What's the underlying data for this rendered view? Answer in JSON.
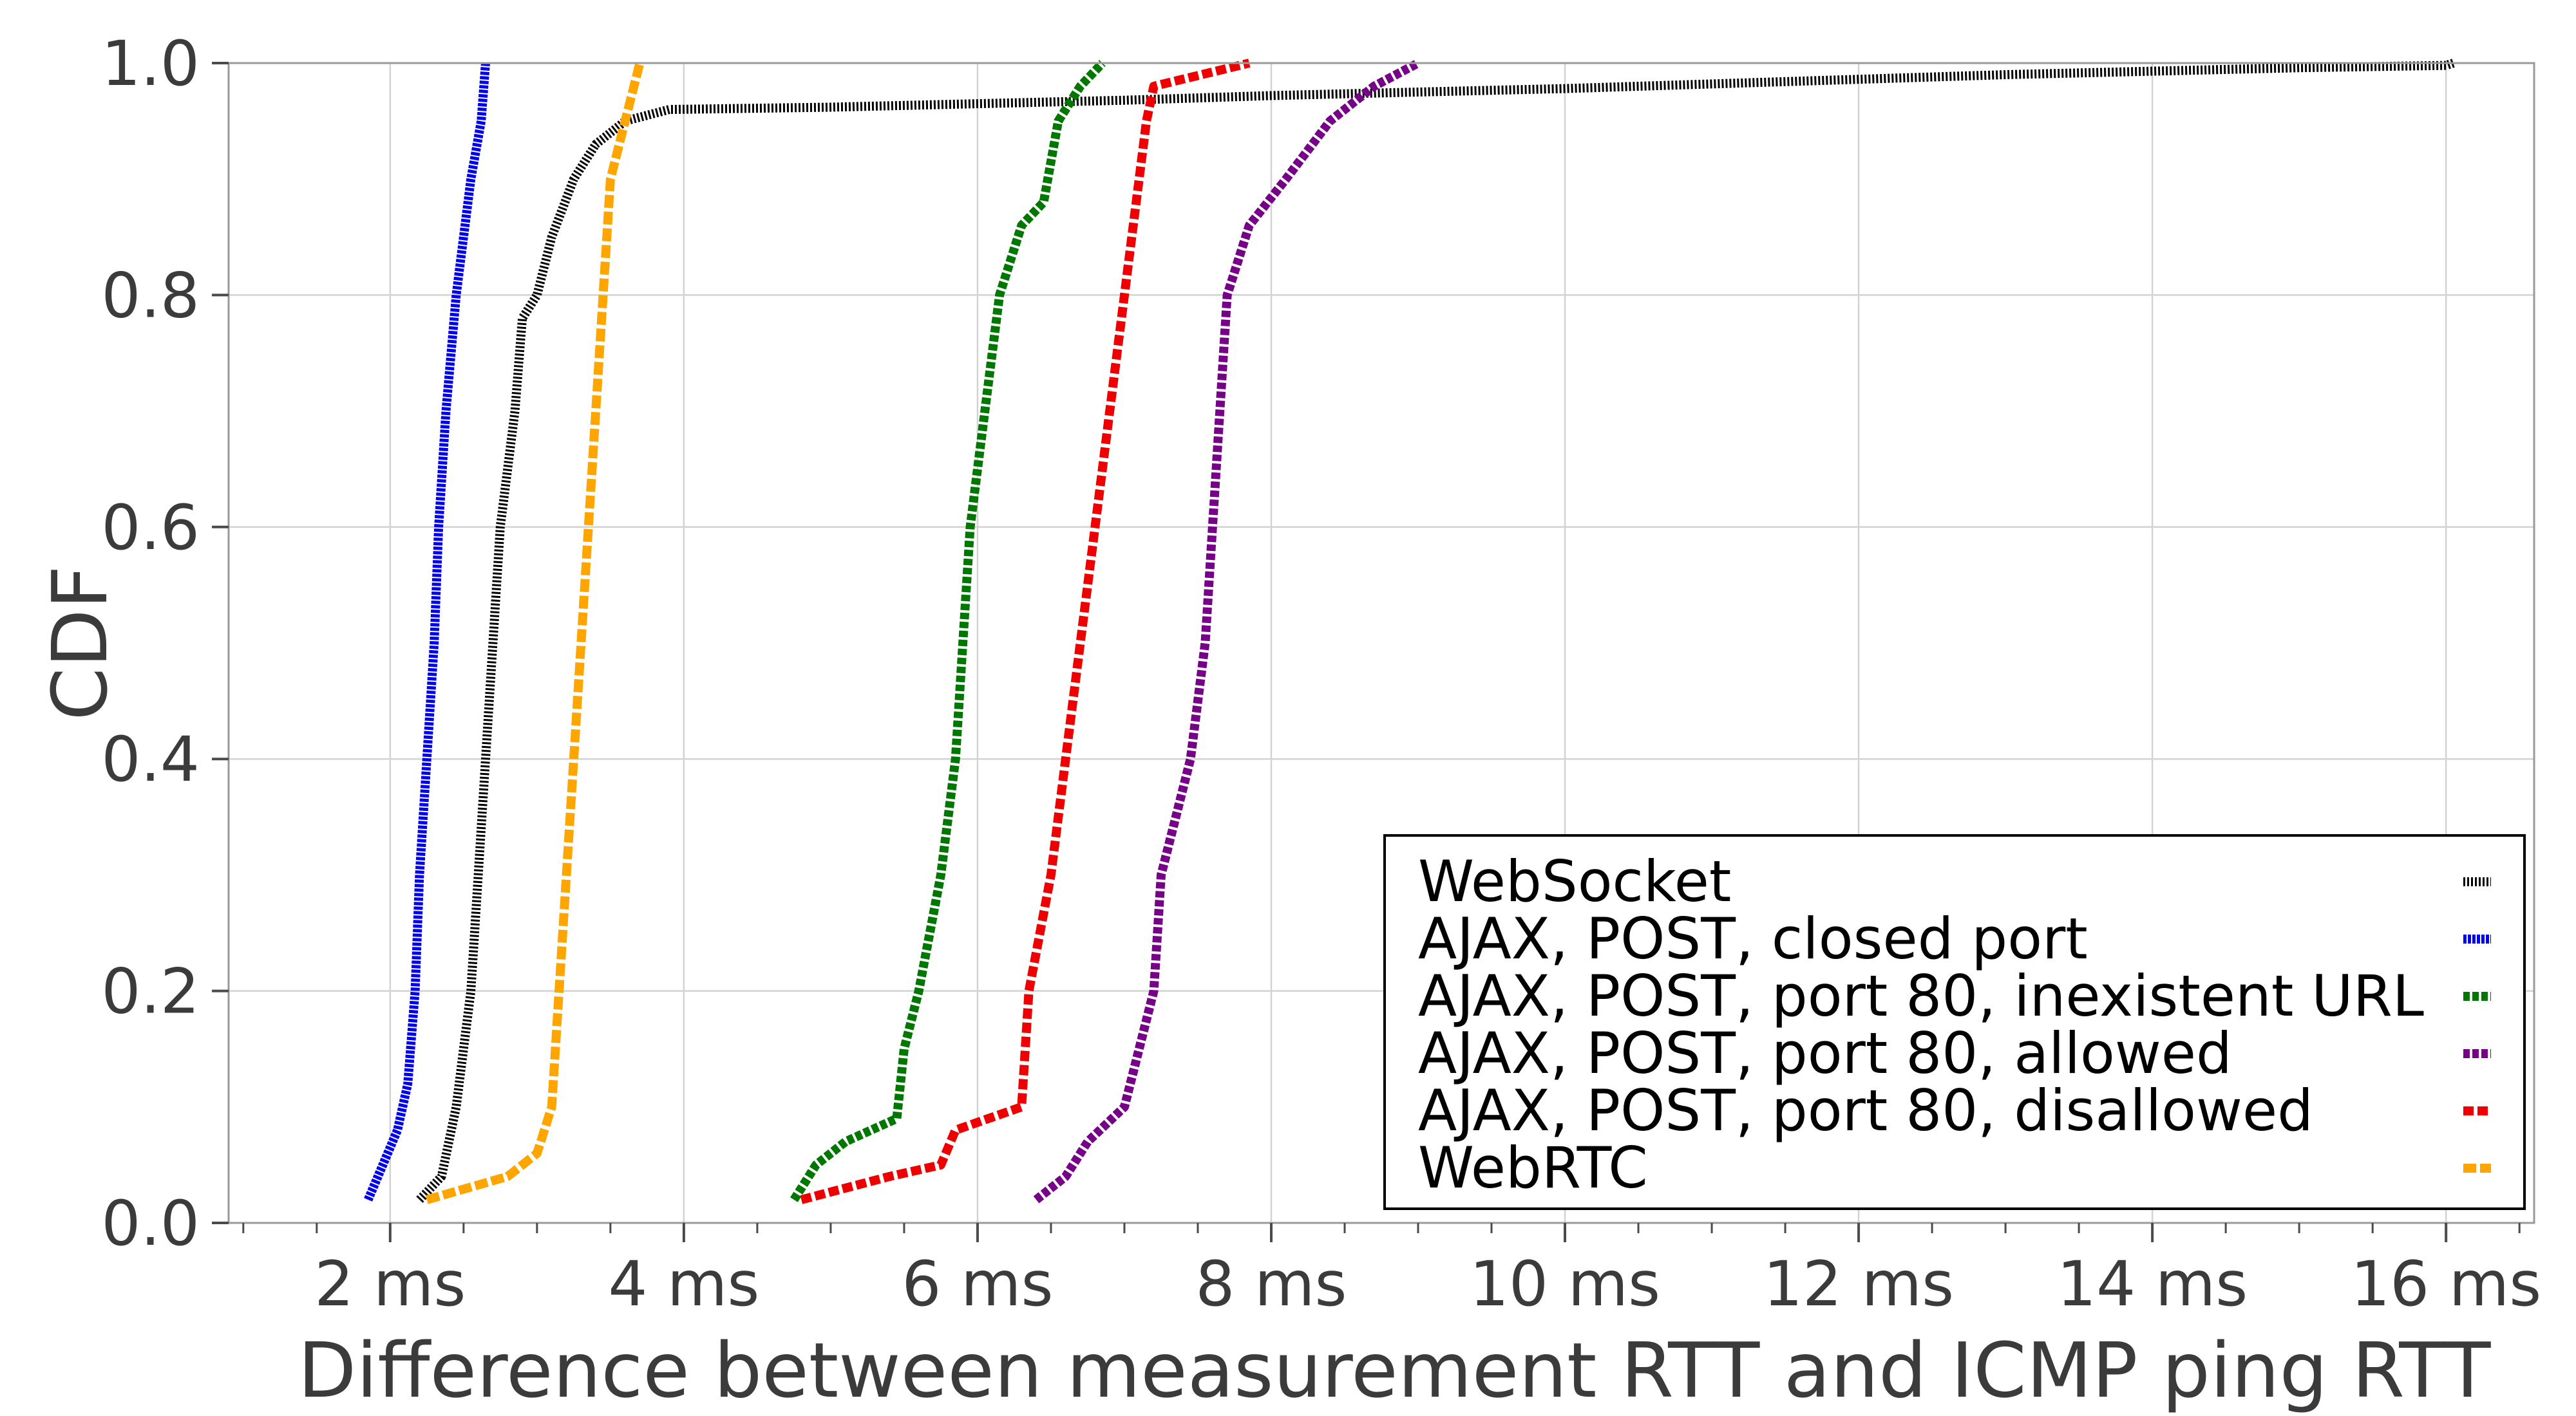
{
  "chart_data": {
    "type": "line",
    "title": "",
    "xlabel": "Difference between measurement RTT and ICMP ping RTT",
    "ylabel": "CDF",
    "xlim": [
      0.9,
      16.6
    ],
    "ylim": [
      0.0,
      1.0
    ],
    "x_ticks": [
      {
        "value": 2,
        "label": "2 ms"
      },
      {
        "value": 4,
        "label": "4 ms"
      },
      {
        "value": 6,
        "label": "6 ms"
      },
      {
        "value": 8,
        "label": "8 ms"
      },
      {
        "value": 10,
        "label": "10 ms"
      },
      {
        "value": 12,
        "label": "12 ms"
      },
      {
        "value": 14,
        "label": "14 ms"
      },
      {
        "value": 16,
        "label": "16 ms"
      }
    ],
    "y_ticks": [
      {
        "value": 0.0,
        "label": "0.0"
      },
      {
        "value": 0.2,
        "label": "0.2"
      },
      {
        "value": 0.4,
        "label": "0.4"
      },
      {
        "value": 0.6,
        "label": "0.6"
      },
      {
        "value": 0.8,
        "label": "0.8"
      },
      {
        "value": 1.0,
        "label": "1.0"
      }
    ],
    "grid": true,
    "legend_position": "bottom-right",
    "series": [
      {
        "name": "WebSocket",
        "color": "#000000",
        "dash": "3 3",
        "points": [
          [
            2.2,
            0.02
          ],
          [
            2.35,
            0.04
          ],
          [
            2.45,
            0.1
          ],
          [
            2.55,
            0.2
          ],
          [
            2.6,
            0.3
          ],
          [
            2.65,
            0.4
          ],
          [
            2.7,
            0.5
          ],
          [
            2.75,
            0.6
          ],
          [
            2.8,
            0.65
          ],
          [
            2.85,
            0.7
          ],
          [
            2.9,
            0.78
          ],
          [
            3.0,
            0.8
          ],
          [
            3.1,
            0.85
          ],
          [
            3.25,
            0.9
          ],
          [
            3.4,
            0.93
          ],
          [
            3.6,
            0.95
          ],
          [
            3.9,
            0.96
          ],
          [
            5.0,
            0.962
          ],
          [
            6.0,
            0.965
          ],
          [
            7.0,
            0.968
          ],
          [
            8.0,
            0.972
          ],
          [
            9.0,
            0.975
          ],
          [
            10.0,
            0.978
          ],
          [
            11.0,
            0.982
          ],
          [
            12.0,
            0.986
          ],
          [
            13.0,
            0.99
          ],
          [
            14.0,
            0.993
          ],
          [
            15.0,
            0.996
          ],
          [
            16.0,
            0.998
          ],
          [
            16.05,
            1.0
          ]
        ]
      },
      {
        "name": "AJAX, POST, closed port",
        "color": "#0000ee",
        "dash": "5 2",
        "points": [
          [
            1.85,
            0.02
          ],
          [
            1.95,
            0.05
          ],
          [
            2.05,
            0.08
          ],
          [
            2.12,
            0.12
          ],
          [
            2.17,
            0.2
          ],
          [
            2.2,
            0.3
          ],
          [
            2.25,
            0.4
          ],
          [
            2.3,
            0.5
          ],
          [
            2.33,
            0.6
          ],
          [
            2.38,
            0.7
          ],
          [
            2.45,
            0.8
          ],
          [
            2.55,
            0.9
          ],
          [
            2.62,
            0.95
          ],
          [
            2.65,
            1.0
          ]
        ]
      },
      {
        "name": "AJAX, POST, port 80, inexistent URL",
        "color": "#007700",
        "dash": "10 4",
        "points": [
          [
            4.75,
            0.02
          ],
          [
            4.9,
            0.05
          ],
          [
            5.1,
            0.07
          ],
          [
            5.45,
            0.09
          ],
          [
            5.5,
            0.15
          ],
          [
            5.6,
            0.2
          ],
          [
            5.75,
            0.3
          ],
          [
            5.85,
            0.4
          ],
          [
            5.9,
            0.5
          ],
          [
            5.95,
            0.6
          ],
          [
            6.05,
            0.7
          ],
          [
            6.15,
            0.8
          ],
          [
            6.3,
            0.86
          ],
          [
            6.45,
            0.88
          ],
          [
            6.55,
            0.95
          ],
          [
            6.7,
            0.98
          ],
          [
            6.85,
            1.0
          ]
        ]
      },
      {
        "name": "AJAX, POST, port 80, allowed",
        "color": "#770088",
        "dash": "10 4",
        "points": [
          [
            6.4,
            0.02
          ],
          [
            6.6,
            0.04
          ],
          [
            6.75,
            0.07
          ],
          [
            7.0,
            0.1
          ],
          [
            7.1,
            0.15
          ],
          [
            7.2,
            0.2
          ],
          [
            7.25,
            0.3
          ],
          [
            7.35,
            0.35
          ],
          [
            7.45,
            0.4
          ],
          [
            7.55,
            0.5
          ],
          [
            7.6,
            0.6
          ],
          [
            7.65,
            0.7
          ],
          [
            7.7,
            0.8
          ],
          [
            7.85,
            0.86
          ],
          [
            8.1,
            0.9
          ],
          [
            8.4,
            0.95
          ],
          [
            8.7,
            0.98
          ],
          [
            9.0,
            1.0
          ]
        ]
      },
      {
        "name": "AJAX, POST, port 80, disallowed",
        "color": "#ee0000",
        "dash": "16 6",
        "points": [
          [
            4.8,
            0.02
          ],
          [
            5.4,
            0.04
          ],
          [
            5.75,
            0.05
          ],
          [
            5.85,
            0.08
          ],
          [
            6.3,
            0.1
          ],
          [
            6.35,
            0.2
          ],
          [
            6.5,
            0.3
          ],
          [
            6.6,
            0.4
          ],
          [
            6.7,
            0.5
          ],
          [
            6.8,
            0.6
          ],
          [
            6.9,
            0.7
          ],
          [
            7.0,
            0.8
          ],
          [
            7.1,
            0.9
          ],
          [
            7.15,
            0.95
          ],
          [
            7.2,
            0.98
          ],
          [
            7.85,
            1.0
          ]
        ]
      },
      {
        "name": "WebRTC",
        "color": "#ffa500",
        "dash": "20 6",
        "points": [
          [
            2.25,
            0.02
          ],
          [
            2.8,
            0.04
          ],
          [
            3.0,
            0.06
          ],
          [
            3.1,
            0.1
          ],
          [
            3.15,
            0.2
          ],
          [
            3.2,
            0.3
          ],
          [
            3.25,
            0.4
          ],
          [
            3.3,
            0.5
          ],
          [
            3.35,
            0.6
          ],
          [
            3.4,
            0.7
          ],
          [
            3.45,
            0.8
          ],
          [
            3.5,
            0.9
          ],
          [
            3.6,
            0.95
          ],
          [
            3.7,
            1.0
          ]
        ]
      }
    ]
  }
}
